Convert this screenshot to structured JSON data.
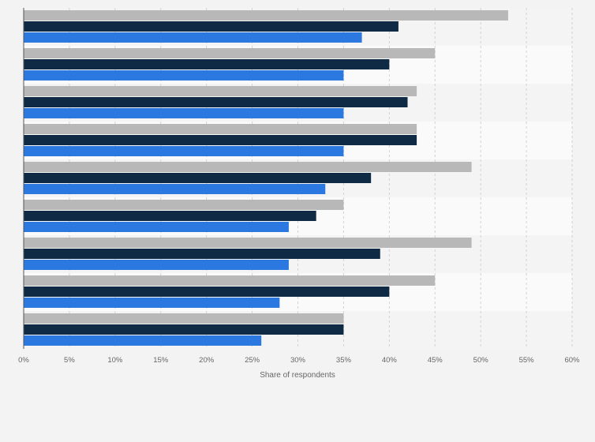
{
  "chart_data": {
    "type": "bar",
    "orientation": "horizontal",
    "title": "",
    "xlabel": "Share of respondents",
    "ylabel": "",
    "xlim": [
      0,
      60
    ],
    "x_ticks": [
      0,
      5,
      10,
      15,
      20,
      25,
      30,
      35,
      40,
      45,
      50,
      55,
      60
    ],
    "x_tick_labels": [
      "0%",
      "5%",
      "10%",
      "15%",
      "20%",
      "25%",
      "30%",
      "35%",
      "40%",
      "45%",
      "50%",
      "55%",
      "60%"
    ],
    "grid": true,
    "legend": "none",
    "category_count": 9,
    "series": [
      {
        "color": "#b8b8b8",
        "values": [
          53,
          45,
          43,
          43,
          49,
          35,
          49,
          45,
          35
        ]
      },
      {
        "color": "#0f2a45",
        "values": [
          41,
          40,
          42,
          43,
          38,
          32,
          39,
          40,
          35
        ]
      },
      {
        "color": "#2b78e0",
        "values": [
          37,
          35,
          35,
          35,
          33,
          29,
          29,
          28,
          26
        ]
      }
    ]
  }
}
